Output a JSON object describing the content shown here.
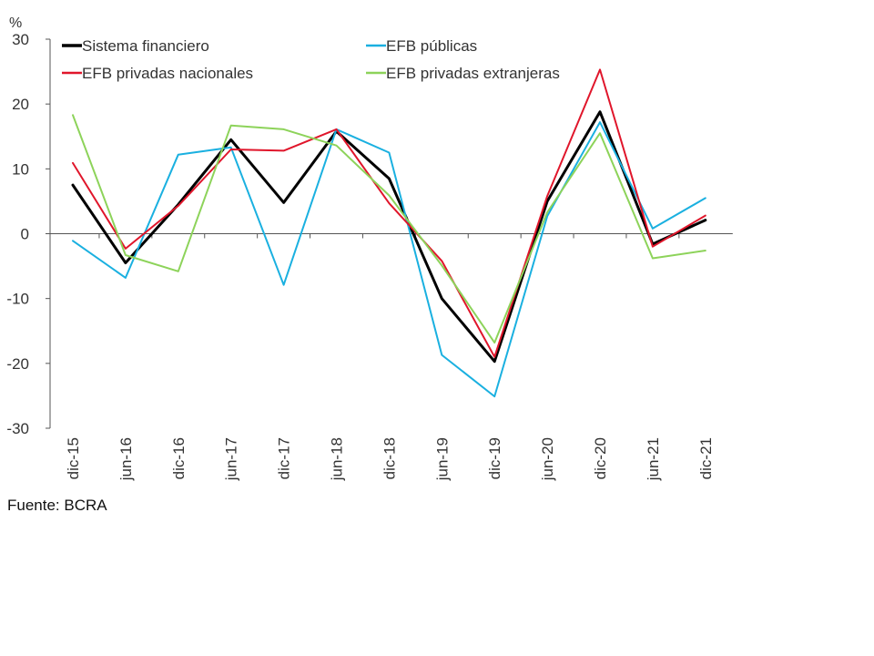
{
  "chart_data": {
    "type": "line",
    "ylabel": "%",
    "ylim": [
      -30,
      30
    ],
    "yticks": [
      30,
      20,
      10,
      0,
      -10,
      -20,
      -30
    ],
    "categories": [
      "dic-15",
      "jun-16",
      "dic-16",
      "jun-17",
      "dic-17",
      "jun-18",
      "dic-18",
      "jun-19",
      "dic-19",
      "jun-20",
      "dic-20",
      "jun-21",
      "dic-21"
    ],
    "grid": false,
    "legend_position": "top",
    "series": [
      {
        "name": "Sistema financiero",
        "color": "#000000",
        "width": 3,
        "values": [
          7.5,
          -4.5,
          4.5,
          14.5,
          4.8,
          15.8,
          8.5,
          -10.0,
          -19.7,
          5.0,
          18.8,
          -1.6,
          2.1
        ]
      },
      {
        "name": "EFB públicas",
        "color": "#1ab0e0",
        "width": 2,
        "values": [
          -1.1,
          -6.8,
          12.2,
          13.3,
          -7.9,
          16.1,
          12.5,
          -18.7,
          -25.1,
          2.7,
          17.2,
          0.8,
          5.5
        ]
      },
      {
        "name": "EFB privadas nacionales",
        "color": "#e0162b",
        "width": 2,
        "values": [
          10.9,
          -2.3,
          4.3,
          13.0,
          12.8,
          16.1,
          4.7,
          -4.2,
          -19.0,
          5.8,
          25.3,
          -2.0,
          2.8
        ]
      },
      {
        "name": "EFB privadas extranjeras",
        "color": "#8dd35a",
        "width": 2,
        "values": [
          18.3,
          -3.3,
          -5.8,
          16.7,
          16.1,
          13.6,
          5.9,
          -4.9,
          -16.8,
          3.3,
          15.5,
          -3.8,
          -2.6
        ]
      }
    ]
  },
  "source_note": "Fuente: BCRA"
}
